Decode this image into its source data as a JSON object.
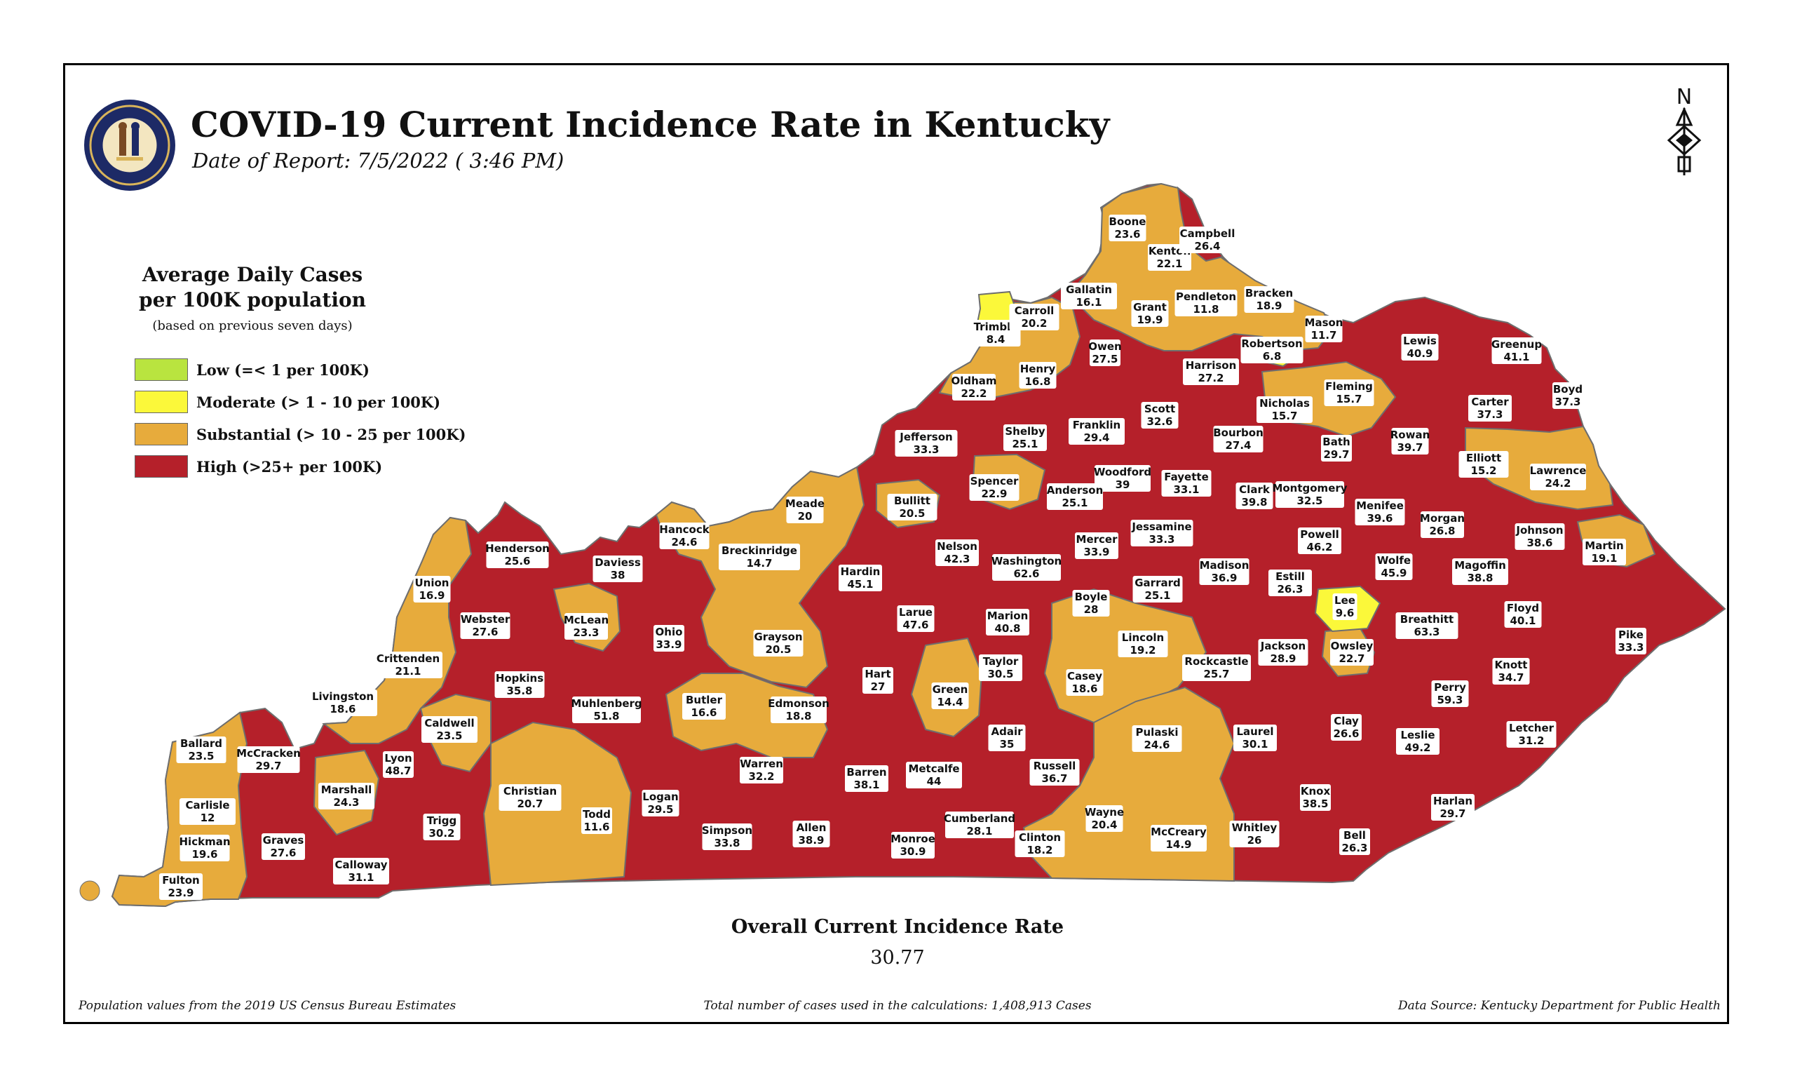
{
  "header": {
    "title": "COVID-19 Current Incidence Rate in Kentucky",
    "date": "Date of Report: 7/5/2022 ( 3:46 PM)",
    "seal_text": "COMMONWEALTH OF KENTUCKY",
    "north_label": "N"
  },
  "legend": {
    "title_line1": "Average Daily Cases",
    "title_line2": "per 100K population",
    "note": "(based on previous seven days)",
    "items": [
      {
        "label": "Low (=< 1 per 100K)",
        "color": "#b9e43f"
      },
      {
        "label": "Moderate (> 1 - 10 per 100K)",
        "color": "#fbf83a"
      },
      {
        "label": "Substantial (> 10 - 25 per 100K)",
        "color": "#e7ab3c"
      },
      {
        "label": "High (>25+ per 100K)",
        "color": "#b5202a"
      }
    ]
  },
  "colors": {
    "low": "#b9e43f",
    "moderate": "#fbf83a",
    "substantial": "#e7ab3c",
    "high": "#b5202a"
  },
  "counties": [
    {
      "name": "Boone",
      "value": "23.6",
      "level": "substantial"
    },
    {
      "name": "Kenton",
      "value": "22.1",
      "level": "substantial"
    },
    {
      "name": "Campbell",
      "value": "26.4",
      "level": "high"
    },
    {
      "name": "Gallatin",
      "value": "16.1",
      "level": "substantial"
    },
    {
      "name": "Trimble",
      "value": "8.4",
      "level": "moderate"
    },
    {
      "name": "Carroll",
      "value": "20.2",
      "level": "substantial"
    },
    {
      "name": "Grant",
      "value": "19.9",
      "level": "substantial"
    },
    {
      "name": "Pendleton",
      "value": "11.8",
      "level": "substantial"
    },
    {
      "name": "Bracken",
      "value": "18.9",
      "level": "substantial"
    },
    {
      "name": "Mason",
      "value": "11.7",
      "level": "substantial"
    },
    {
      "name": "Robertson",
      "value": "6.8",
      "level": "moderate"
    },
    {
      "name": "Lewis",
      "value": "40.9",
      "level": "high"
    },
    {
      "name": "Greenup",
      "value": "41.1",
      "level": "high"
    },
    {
      "name": "Boyd",
      "value": "37.3",
      "level": "high"
    },
    {
      "name": "Owen",
      "value": "27.5",
      "level": "high"
    },
    {
      "name": "Oldham",
      "value": "22.2",
      "level": "substantial"
    },
    {
      "name": "Henry",
      "value": "16.8",
      "level": "substantial"
    },
    {
      "name": "Harrison",
      "value": "27.2",
      "level": "high"
    },
    {
      "name": "Fleming",
      "value": "15.7",
      "level": "substantial"
    },
    {
      "name": "Nicholas",
      "value": "15.7",
      "level": "substantial"
    },
    {
      "name": "Carter",
      "value": "37.3",
      "level": "high"
    },
    {
      "name": "Scott",
      "value": "32.6",
      "level": "high"
    },
    {
      "name": "Jefferson",
      "value": "33.3",
      "level": "high"
    },
    {
      "name": "Shelby",
      "value": "25.1",
      "level": "high"
    },
    {
      "name": "Franklin",
      "value": "29.4",
      "level": "high"
    },
    {
      "name": "Bourbon",
      "value": "27.4",
      "level": "high"
    },
    {
      "name": "Bath",
      "value": "29.7",
      "level": "high"
    },
    {
      "name": "Rowan",
      "value": "39.7",
      "level": "high"
    },
    {
      "name": "Elliott",
      "value": "15.2",
      "level": "substantial"
    },
    {
      "name": "Lawrence",
      "value": "24.2",
      "level": "substantial"
    },
    {
      "name": "Woodford",
      "value": "39",
      "level": "high"
    },
    {
      "name": "Fayette",
      "value": "33.1",
      "level": "high"
    },
    {
      "name": "Anderson",
      "value": "25.1",
      "level": "high"
    },
    {
      "name": "Spencer",
      "value": "22.9",
      "level": "substantial"
    },
    {
      "name": "Clark",
      "value": "39.8",
      "level": "high"
    },
    {
      "name": "Montgomery",
      "value": "32.5",
      "level": "high"
    },
    {
      "name": "Menifee",
      "value": "39.6",
      "level": "high"
    },
    {
      "name": "Morgan",
      "value": "26.8",
      "level": "high"
    },
    {
      "name": "Johnson",
      "value": "38.6",
      "level": "high"
    },
    {
      "name": "Martin",
      "value": "19.1",
      "level": "substantial"
    },
    {
      "name": "Meade",
      "value": "20",
      "level": "substantial"
    },
    {
      "name": "Bullitt",
      "value": "20.5",
      "level": "substantial"
    },
    {
      "name": "Hancock",
      "value": "24.6",
      "level": "substantial"
    },
    {
      "name": "Breckinridge",
      "value": "14.7",
      "level": "substantial"
    },
    {
      "name": "Henderson",
      "value": "25.6",
      "level": "high"
    },
    {
      "name": "Daviess",
      "value": "38",
      "level": "high"
    },
    {
      "name": "Nelson",
      "value": "42.3",
      "level": "high"
    },
    {
      "name": "Mercer",
      "value": "33.9",
      "level": "high"
    },
    {
      "name": "Jessamine",
      "value": "33.3",
      "level": "high"
    },
    {
      "name": "Powell",
      "value": "46.2",
      "level": "high"
    },
    {
      "name": "Wolfe",
      "value": "45.9",
      "level": "high"
    },
    {
      "name": "Magoffin",
      "value": "38.8",
      "level": "high"
    },
    {
      "name": "Hardin",
      "value": "45.1",
      "level": "high"
    },
    {
      "name": "Washington",
      "value": "62.6",
      "level": "high"
    },
    {
      "name": "Madison",
      "value": "36.9",
      "level": "high"
    },
    {
      "name": "Estill",
      "value": "26.3",
      "level": "high"
    },
    {
      "name": "Union",
      "value": "16.9",
      "level": "substantial"
    },
    {
      "name": "Boyle",
      "value": "28",
      "level": "high"
    },
    {
      "name": "Garrard",
      "value": "25.1",
      "level": "high"
    },
    {
      "name": "Lee",
      "value": "9.6",
      "level": "moderate"
    },
    {
      "name": "Breathitt",
      "value": "63.3",
      "level": "high"
    },
    {
      "name": "Floyd",
      "value": "40.1",
      "level": "high"
    },
    {
      "name": "Webster",
      "value": "27.6",
      "level": "high"
    },
    {
      "name": "McLean",
      "value": "23.3",
      "level": "substantial"
    },
    {
      "name": "Ohio",
      "value": "33.9",
      "level": "high"
    },
    {
      "name": "Larue",
      "value": "47.6",
      "level": "high"
    },
    {
      "name": "Marion",
      "value": "40.8",
      "level": "high"
    },
    {
      "name": "Grayson",
      "value": "20.5",
      "level": "substantial"
    },
    {
      "name": "Lincoln",
      "value": "19.2",
      "level": "substantial"
    },
    {
      "name": "Jackson",
      "value": "28.9",
      "level": "high"
    },
    {
      "name": "Owsley",
      "value": "22.7",
      "level": "substantial"
    },
    {
      "name": "Pike",
      "value": "33.3",
      "level": "high"
    },
    {
      "name": "Crittenden",
      "value": "21.1",
      "level": "substantial"
    },
    {
      "name": "Hopkins",
      "value": "35.8",
      "level": "high"
    },
    {
      "name": "Rockcastle",
      "value": "25.7",
      "level": "high"
    },
    {
      "name": "Knott",
      "value": "34.7",
      "level": "high"
    },
    {
      "name": "Taylor",
      "value": "30.5",
      "level": "high"
    },
    {
      "name": "Casey",
      "value": "18.6",
      "level": "substantial"
    },
    {
      "name": "Livingston",
      "value": "18.6",
      "level": "substantial"
    },
    {
      "name": "Hart",
      "value": "27",
      "level": "high"
    },
    {
      "name": "Green",
      "value": "14.4",
      "level": "substantial"
    },
    {
      "name": "Perry",
      "value": "59.3",
      "level": "high"
    },
    {
      "name": "Muhlenberg",
      "value": "51.8",
      "level": "high"
    },
    {
      "name": "Butler",
      "value": "16.6",
      "level": "substantial"
    },
    {
      "name": "Edmonson",
      "value": "18.8",
      "level": "substantial"
    },
    {
      "name": "Caldwell",
      "value": "23.5",
      "level": "substantial"
    },
    {
      "name": "Ballard",
      "value": "23.5",
      "level": "substantial"
    },
    {
      "name": "Clay",
      "value": "26.6",
      "level": "high"
    },
    {
      "name": "Letcher",
      "value": "31.2",
      "level": "high"
    },
    {
      "name": "Pulaski",
      "value": "24.6",
      "level": "substantial"
    },
    {
      "name": "Adair",
      "value": "35",
      "level": "high"
    },
    {
      "name": "Laurel",
      "value": "30.1",
      "level": "high"
    },
    {
      "name": "Leslie",
      "value": "49.2",
      "level": "high"
    },
    {
      "name": "McCracken",
      "value": "29.7",
      "level": "high"
    },
    {
      "name": "Lyon",
      "value": "48.7",
      "level": "high"
    },
    {
      "name": "Marshall",
      "value": "24.3",
      "level": "substantial"
    },
    {
      "name": "Christian",
      "value": "20.7",
      "level": "substantial"
    },
    {
      "name": "Warren",
      "value": "32.2",
      "level": "high"
    },
    {
      "name": "Russell",
      "value": "36.7",
      "level": "high"
    },
    {
      "name": "Barren",
      "value": "38.1",
      "level": "high"
    },
    {
      "name": "Metcalfe",
      "value": "44",
      "level": "high"
    },
    {
      "name": "Logan",
      "value": "29.5",
      "level": "high"
    },
    {
      "name": "Knox",
      "value": "38.5",
      "level": "high"
    },
    {
      "name": "Harlan",
      "value": "29.7",
      "level": "high"
    },
    {
      "name": "Carlisle",
      "value": "12",
      "level": "substantial"
    },
    {
      "name": "Trigg",
      "value": "30.2",
      "level": "high"
    },
    {
      "name": "Todd",
      "value": "11.6",
      "level": "substantial"
    },
    {
      "name": "Cumberland",
      "value": "28.1",
      "level": "high"
    },
    {
      "name": "Wayne",
      "value": "20.4",
      "level": "substantial"
    },
    {
      "name": "Graves",
      "value": "27.6",
      "level": "high"
    },
    {
      "name": "Hickman",
      "value": "19.6",
      "level": "substantial"
    },
    {
      "name": "Simpson",
      "value": "33.8",
      "level": "high"
    },
    {
      "name": "Allen",
      "value": "38.9",
      "level": "high"
    },
    {
      "name": "Clinton",
      "value": "18.2",
      "level": "substantial"
    },
    {
      "name": "Monroe",
      "value": "30.9",
      "level": "high"
    },
    {
      "name": "McCreary",
      "value": "14.9",
      "level": "substantial"
    },
    {
      "name": "Whitley",
      "value": "26",
      "level": "high"
    },
    {
      "name": "Bell",
      "value": "26.3",
      "level": "high"
    },
    {
      "name": "Calloway",
      "value": "31.1",
      "level": "high"
    },
    {
      "name": "Fulton",
      "value": "23.9",
      "level": "substantial"
    }
  ],
  "overall": {
    "title": "Overall Current Incidence Rate",
    "value": "30.77"
  },
  "footer": {
    "population": "Population values from the 2019 US Census Bureau Estimates",
    "total_cases": "Total number of cases used in the calculations: 1,408,913 Cases",
    "source": "Data Source: Kentucky Department for Public Health"
  }
}
